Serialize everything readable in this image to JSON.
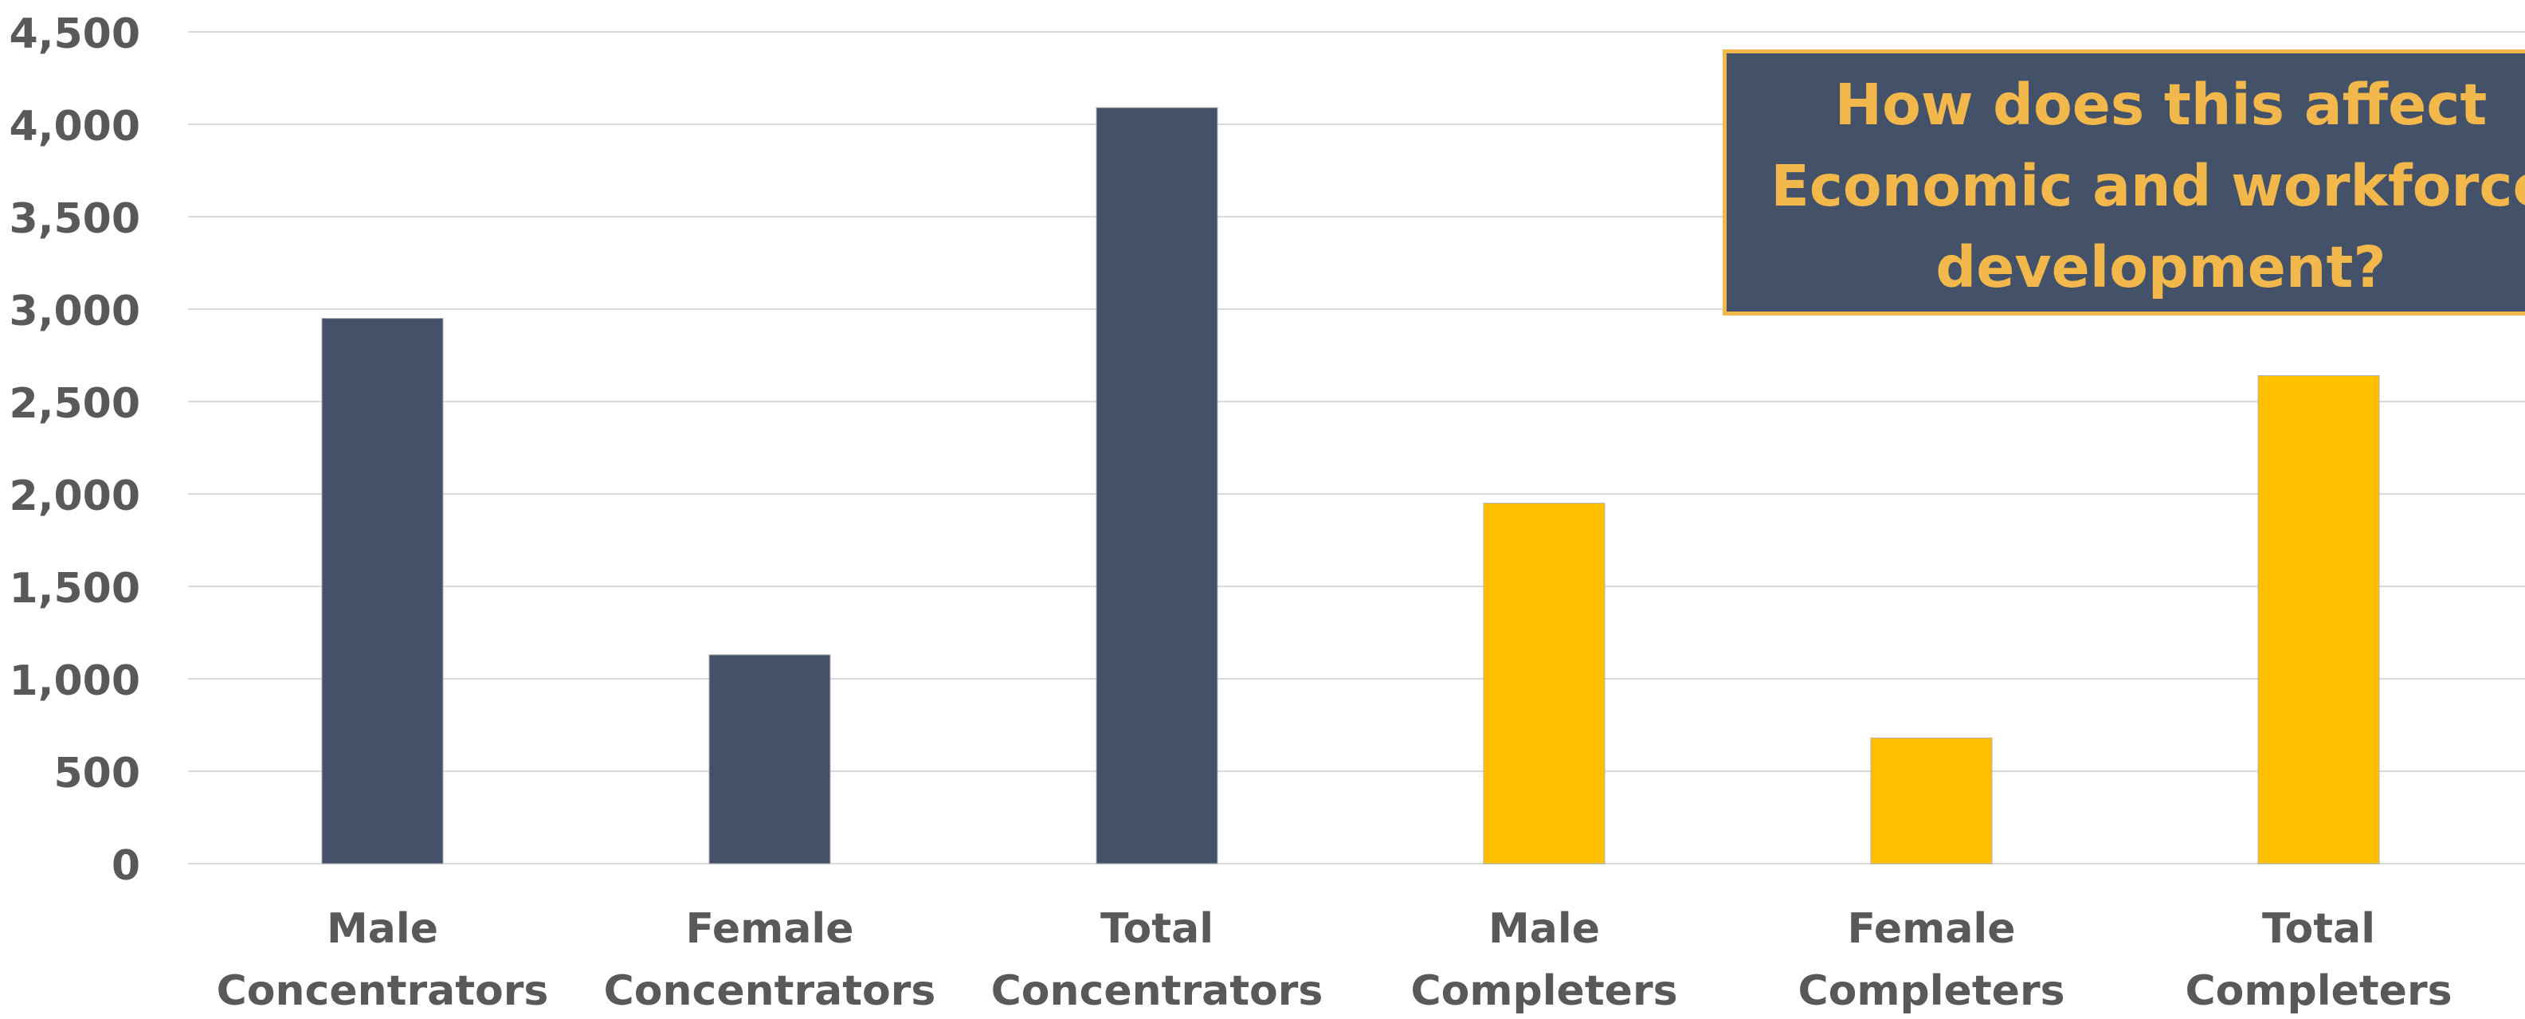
{
  "chart_data": {
    "type": "bar",
    "categories": [
      [
        "Male",
        "Concentrators"
      ],
      [
        "Female",
        "Concentrators"
      ],
      [
        "Total",
        "Concentrators"
      ],
      [
        "Male",
        "Completers"
      ],
      [
        "Female",
        "Completers"
      ],
      [
        "Total",
        "Completers"
      ]
    ],
    "values": [
      2950,
      1130,
      4090,
      1950,
      680,
      2640
    ],
    "bar_colors": [
      "#435268",
      "#435268",
      "#435268",
      "#ffc000",
      "#ffc000",
      "#ffc000"
    ],
    "ylim": [
      0,
      4500
    ],
    "yticks": [
      0,
      500,
      1000,
      1500,
      2000,
      2500,
      3000,
      3500,
      4000,
      4500
    ],
    "ytick_labels": [
      "0",
      "500",
      "1,000",
      "1,500",
      "2,000",
      "2,500",
      "3,000",
      "3,500",
      "4,000",
      "4,500"
    ],
    "grid": true,
    "gridline_color": "#d9d9d9",
    "axis_text_color": "#595959",
    "title": "",
    "xlabel": "",
    "ylabel": ""
  },
  "callout": {
    "lines": [
      "How does this affect",
      "Economic and workforce",
      "development?"
    ],
    "background": "#435268",
    "text_color": "#f2b84b"
  }
}
